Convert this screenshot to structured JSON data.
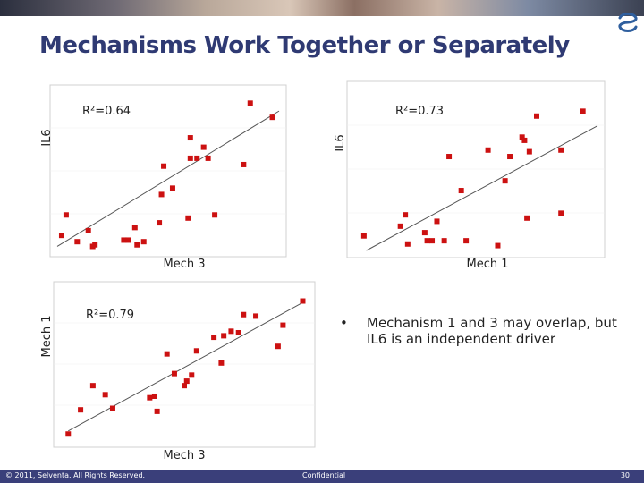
{
  "header": {
    "title": "Mechanisms Work Together or Separately"
  },
  "bullet": {
    "marker": "•",
    "text": "Mechanism 1 and 3 may overlap, but IL6 is an independent driver"
  },
  "footer": {
    "copyright": "© 2011, Selventa. All Rights Reserved.",
    "confidential": "Confidential",
    "page": "30"
  },
  "colors": {
    "title": "#2f3a73",
    "point": "#cc1111",
    "footer_bg": "#3a3f7a"
  },
  "chart_data": [
    {
      "type": "scatter",
      "xlabel": "Mech 3",
      "ylabel": "IL6",
      "r2_label": "R²=0.64",
      "trendline": true,
      "xlim": [
        0,
        10
      ],
      "ylim": [
        0,
        10
      ],
      "trend": [
        [
          0,
          0.2
        ],
        [
          10,
          8.8
        ]
      ],
      "points": [
        [
          0.2,
          0.9
        ],
        [
          0.9,
          0.5
        ],
        [
          1.4,
          1.2
        ],
        [
          1.7,
          0.3
        ],
        [
          1.6,
          0.2
        ],
        [
          0.4,
          2.2
        ],
        [
          3.0,
          0.6
        ],
        [
          3.2,
          0.6
        ],
        [
          3.5,
          1.4
        ],
        [
          3.6,
          0.3
        ],
        [
          3.9,
          0.5
        ],
        [
          4.6,
          1.7
        ],
        [
          4.7,
          3.5
        ],
        [
          4.8,
          5.3
        ],
        [
          5.2,
          3.9
        ],
        [
          5.9,
          2.0
        ],
        [
          6.0,
          5.8
        ],
        [
          6.0,
          7.1
        ],
        [
          6.3,
          5.8
        ],
        [
          6.6,
          6.5
        ],
        [
          6.8,
          5.8
        ],
        [
          7.1,
          2.2
        ],
        [
          8.4,
          5.4
        ],
        [
          8.7,
          9.3
        ],
        [
          9.7,
          8.4
        ]
      ]
    },
    {
      "type": "scatter",
      "xlabel": "Mech 1",
      "ylabel": "IL6",
      "r2_label": "R²=0.73",
      "trendline": true,
      "xlim": [
        0,
        10
      ],
      "ylim": [
        0,
        10
      ],
      "trend": [
        [
          0.5,
          0.0
        ],
        [
          10,
          7.7
        ]
      ],
      "points": [
        [
          0.4,
          0.9
        ],
        [
          1.9,
          1.5
        ],
        [
          2.1,
          2.2
        ],
        [
          2.2,
          0.4
        ],
        [
          2.9,
          1.1
        ],
        [
          3.0,
          0.6
        ],
        [
          3.2,
          0.6
        ],
        [
          3.4,
          1.8
        ],
        [
          3.7,
          0.6
        ],
        [
          3.9,
          5.8
        ],
        [
          4.4,
          3.7
        ],
        [
          4.6,
          0.6
        ],
        [
          5.5,
          6.2
        ],
        [
          5.9,
          0.3
        ],
        [
          6.2,
          4.3
        ],
        [
          6.4,
          5.8
        ],
        [
          6.9,
          7.0
        ],
        [
          7.0,
          6.8
        ],
        [
          7.1,
          2.0
        ],
        [
          7.2,
          6.1
        ],
        [
          7.5,
          8.3
        ],
        [
          8.5,
          6.2
        ],
        [
          8.5,
          2.3
        ],
        [
          9.4,
          8.6
        ]
      ]
    },
    {
      "type": "scatter",
      "xlabel": "Mech 3",
      "ylabel": "Mech 1",
      "r2_label": "R²=0.79",
      "trendline": true,
      "xlim": [
        0,
        10
      ],
      "ylim": [
        0,
        10
      ],
      "trend": [
        [
          0.3,
          0.6
        ],
        [
          9.8,
          9.1
        ]
      ],
      "points": [
        [
          0.3,
          0.4
        ],
        [
          0.8,
          2.0
        ],
        [
          1.3,
          3.6
        ],
        [
          1.8,
          3.0
        ],
        [
          2.1,
          2.1
        ],
        [
          3.6,
          2.8
        ],
        [
          3.8,
          2.9
        ],
        [
          3.9,
          1.9
        ],
        [
          4.3,
          5.7
        ],
        [
          4.6,
          4.4
        ],
        [
          5.0,
          3.6
        ],
        [
          5.1,
          3.9
        ],
        [
          5.3,
          4.3
        ],
        [
          5.5,
          5.9
        ],
        [
          6.2,
          6.8
        ],
        [
          6.5,
          5.1
        ],
        [
          6.6,
          6.9
        ],
        [
          6.9,
          7.2
        ],
        [
          7.2,
          7.1
        ],
        [
          7.4,
          8.3
        ],
        [
          7.9,
          8.2
        ],
        [
          8.8,
          6.2
        ],
        [
          9.0,
          7.6
        ],
        [
          9.8,
          9.2
        ]
      ]
    }
  ]
}
